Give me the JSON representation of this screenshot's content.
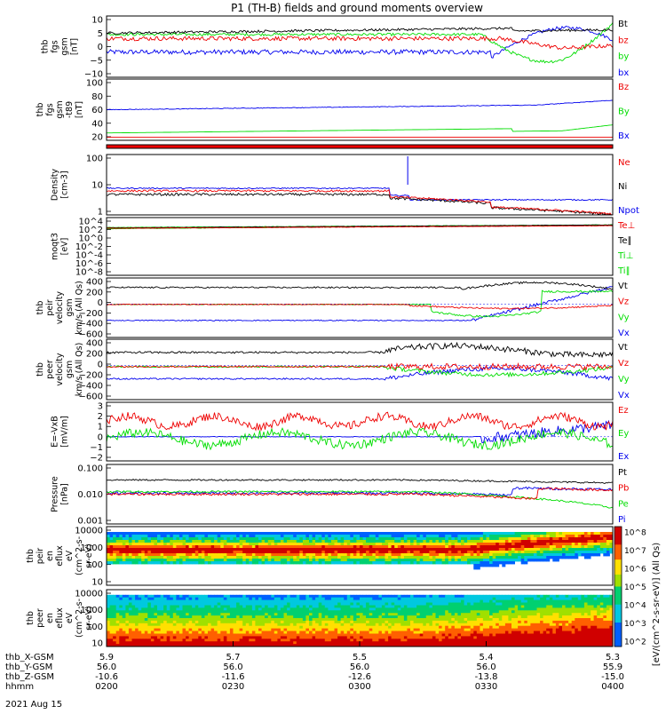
{
  "title": "P1 (TH-B) fields and ground moments overview",
  "date": "2021 Aug 15",
  "time_axis": {
    "row_labels": [
      "thb_X-GSM",
      "thb_Y-GSM",
      "thb_Z-GSM",
      "hhmm"
    ],
    "ticks": [
      {
        "x": "5.9",
        "y": "56.0",
        "z": "-10.6",
        "t": "0200"
      },
      {
        "x": "5.7",
        "y": "56.0",
        "z": "-11.6",
        "t": "0230"
      },
      {
        "x": "5.5",
        "y": "56.0",
        "z": "-12.6",
        "t": "0300"
      },
      {
        "x": "5.4",
        "y": "56.0",
        "z": "-13.8",
        "t": "0330"
      },
      {
        "x": "5.3",
        "y": "55.9",
        "z": "-15.0",
        "t": "0400"
      }
    ]
  },
  "colors": {
    "black": "#000000",
    "red": "#ee0000",
    "green": "#00dd00",
    "blue": "#0000ee"
  },
  "colorbar": {
    "label": "[eV/(cm^2-s-sr-eV)] (All Qs)",
    "ticks": [
      "10^8",
      "10^7",
      "10^6",
      "10^5",
      "10^4",
      "10^3",
      "10^2"
    ]
  },
  "chart_data": [
    {
      "type": "line",
      "ylabel": [
        "thb",
        "fgs",
        "gsm",
        "[nT]"
      ],
      "yticks": [
        "10",
        "5",
        "0",
        "−5",
        "−10"
      ],
      "ylim": [
        -10,
        10
      ],
      "series": [
        {
          "name": "Bt",
          "color": "#000000"
        },
        {
          "name": "bz",
          "color": "#ee0000"
        },
        {
          "name": "by",
          "color": "#00dd00"
        },
        {
          "name": "bx",
          "color": "#0000ee"
        }
      ]
    },
    {
      "type": "line",
      "ylabel": [
        "thb",
        "fgs",
        "gsm",
        "-t89",
        "[nT]"
      ],
      "yticks": [
        "100",
        "80",
        "60",
        "40",
        "20"
      ],
      "ylim": [
        0,
        100
      ],
      "series": [
        {
          "name": "Bz",
          "color": "#ee0000"
        },
        {
          "name": "By",
          "color": "#00dd00"
        },
        {
          "name": "Bx",
          "color": "#0000ee"
        }
      ]
    },
    {
      "type": "bar",
      "ylabel": [],
      "yticks": [],
      "series": []
    },
    {
      "type": "line",
      "ylabel": [
        "Density",
        "[cm-3]"
      ],
      "yticks": [
        "100",
        "10",
        "1"
      ],
      "scale": "log",
      "series": [
        {
          "name": "Ne",
          "color": "#ee0000"
        },
        {
          "name": "Ni",
          "color": "#000000"
        },
        {
          "name": "Npot",
          "color": "#0000ee"
        }
      ]
    },
    {
      "type": "line",
      "ylabel": [
        "moqt3",
        "[eV]"
      ],
      "yticks": [
        "10^4",
        "10^2",
        "10^0",
        "10^-2",
        "10^-4",
        "10^-6",
        "10^-8"
      ],
      "scale": "log",
      "series": [
        {
          "name": "Te⊥",
          "color": "#ee0000"
        },
        {
          "name": "Te∥",
          "color": "#000000"
        },
        {
          "name": "Ti⊥",
          "color": "#00dd00"
        },
        {
          "name": "Ti∥",
          "color": "#00dd00"
        }
      ]
    },
    {
      "type": "line",
      "ylabel": [
        "thb",
        "peir",
        "velocity",
        "gsm",
        "km/s (All Qs)"
      ],
      "yticks": [
        "400",
        "200",
        "0",
        "−200",
        "−400",
        "−600"
      ],
      "ylim": [
        -600,
        450
      ],
      "series": [
        {
          "name": "Vt",
          "color": "#000000"
        },
        {
          "name": "Vz",
          "color": "#ee0000"
        },
        {
          "name": "Vy",
          "color": "#00dd00"
        },
        {
          "name": "Vx",
          "color": "#0000ee"
        }
      ]
    },
    {
      "type": "line",
      "ylabel": [
        "thb",
        "peer",
        "velocity",
        "gsm",
        "km/s (All Qs)"
      ],
      "yticks": [
        "400",
        "200",
        "0",
        "−200",
        "−400",
        "−600"
      ],
      "ylim": [
        -600,
        450
      ],
      "series": [
        {
          "name": "Vt",
          "color": "#000000"
        },
        {
          "name": "Vz",
          "color": "#ee0000"
        },
        {
          "name": "Vy",
          "color": "#00dd00"
        },
        {
          "name": "Vx",
          "color": "#0000ee"
        }
      ]
    },
    {
      "type": "line",
      "ylabel": [
        "E=-VxB",
        "[mV/m]"
      ],
      "yticks": [
        "3",
        "2",
        "1",
        "0",
        "−1",
        "−2"
      ],
      "ylim": [
        -2,
        3
      ],
      "series": [
        {
          "name": "Ez",
          "color": "#ee0000"
        },
        {
          "name": "Ey",
          "color": "#00dd00"
        },
        {
          "name": "Ex",
          "color": "#0000ee"
        }
      ]
    },
    {
      "type": "line",
      "ylabel": [
        "Pressure",
        "[nPa]"
      ],
      "yticks": [
        "0.100",
        "0.010",
        "0.001"
      ],
      "scale": "log",
      "series": [
        {
          "name": "Pt",
          "color": "#000000"
        },
        {
          "name": "Pb",
          "color": "#ee0000"
        },
        {
          "name": "Pe",
          "color": "#00dd00"
        },
        {
          "name": "Pi",
          "color": "#0000ee"
        }
      ]
    },
    {
      "type": "heatmap",
      "ylabel": [
        "thb",
        "peir",
        "en",
        "eflux",
        "eV",
        "(cm^2-s-",
        "sr-eV)"
      ],
      "yticks": [
        "10000",
        "1000",
        "100",
        "10"
      ],
      "scale": "log",
      "series": []
    },
    {
      "type": "heatmap",
      "ylabel": [
        "thb",
        "peer",
        "en",
        "eflux",
        "eV",
        "(cm^2-s-",
        "sr-eV)"
      ],
      "yticks": [
        "10000",
        "1000",
        "100",
        "10"
      ],
      "scale": "log",
      "series": []
    }
  ]
}
